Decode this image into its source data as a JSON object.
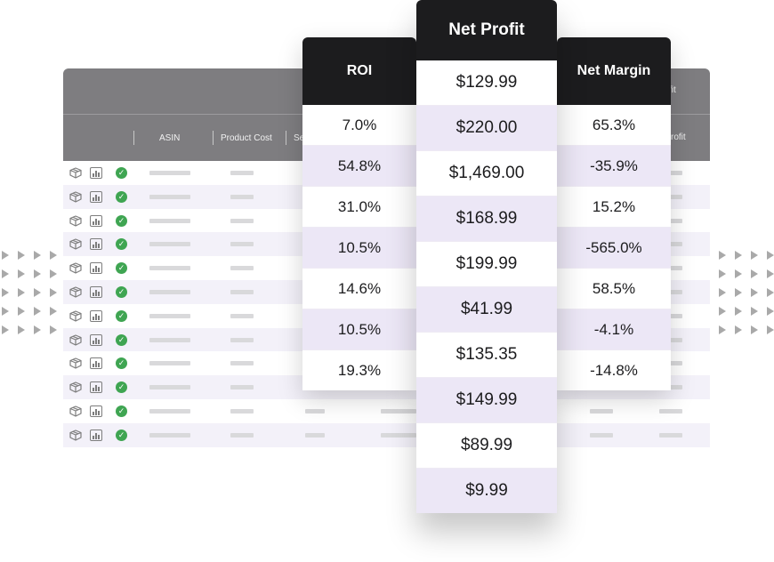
{
  "background_table": {
    "columns": [
      "ASIN",
      "Product Cost",
      "Se"
    ],
    "corner_labels": [
      "fit",
      "rofit"
    ],
    "row_count": 12
  },
  "roi_card": {
    "title": "ROI",
    "values": [
      "7.0%",
      "54.8%",
      "31.0%",
      "10.5%",
      "14.6%",
      "10.5%",
      "19.3%"
    ]
  },
  "net_profit_card": {
    "title": "Net Profit",
    "values": [
      "$129.99",
      "$220.00",
      "$1,469.00",
      "$168.99",
      "$199.99",
      "$41.99",
      "$135.35",
      "$149.99",
      "$89.99",
      "$9.99"
    ]
  },
  "net_margin_card": {
    "title": "Net Margin",
    "values": [
      "65.3%",
      "-35.9%",
      "15.2%",
      "-565.0%",
      "58.5%",
      "-4.1%",
      "-14.8%"
    ]
  },
  "icons": [
    "box-icon",
    "chart-icon",
    "check-circle-icon"
  ],
  "colors": {
    "header_dark": "#1c1c1e",
    "row_alt": "#ece7f6",
    "table_header": "#7e7d80",
    "check": "#3fa552"
  }
}
